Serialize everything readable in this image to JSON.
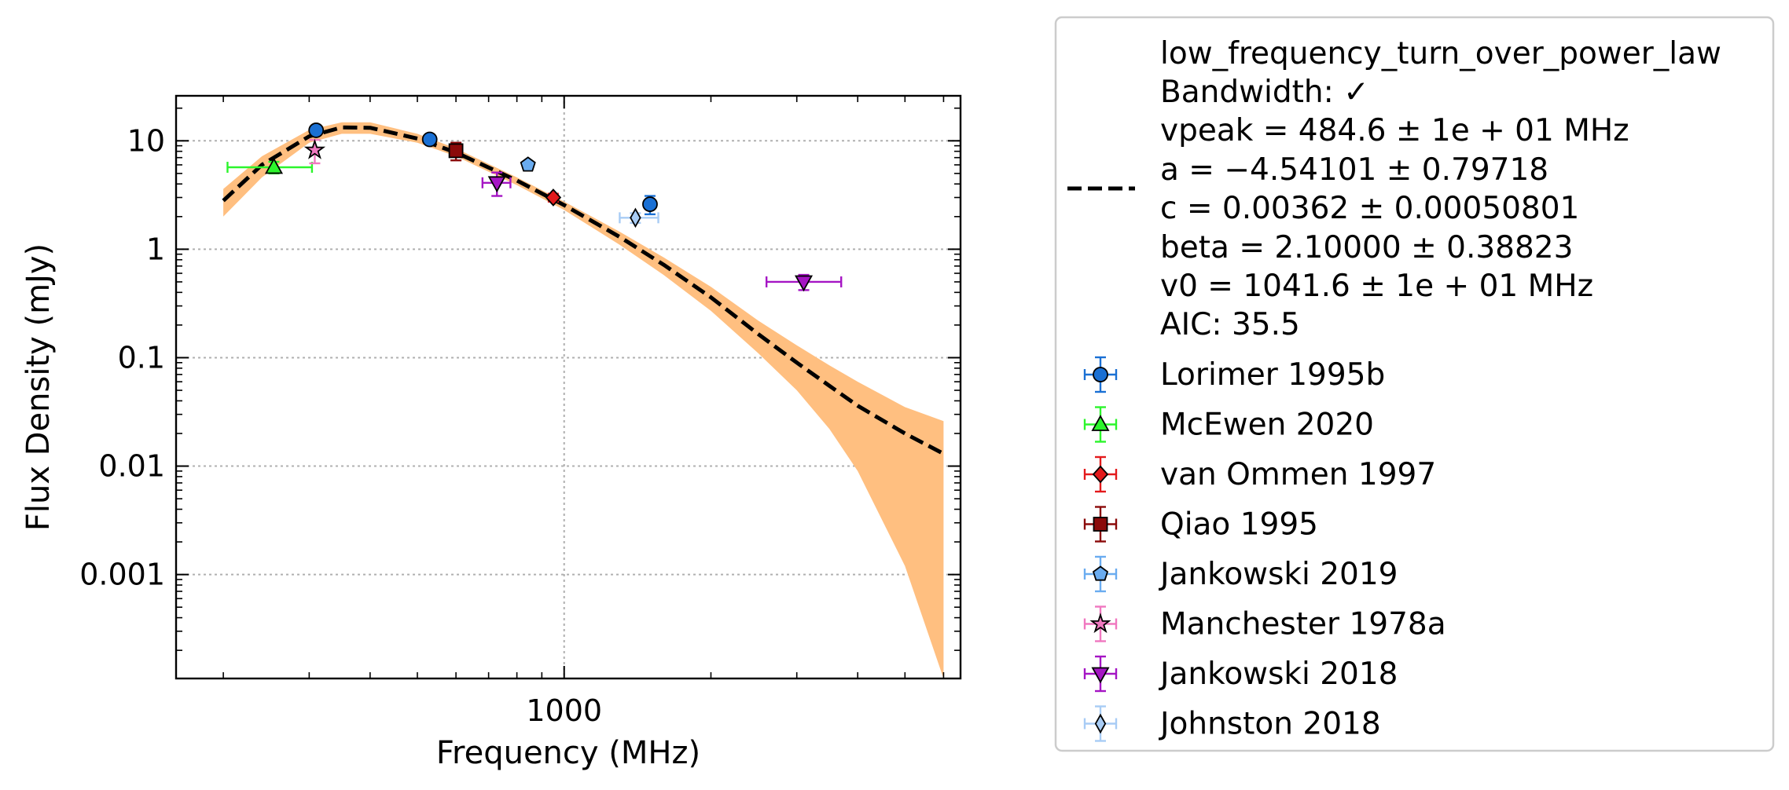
{
  "chart_data": {
    "type": "scatter",
    "title": "",
    "xlabel": "Frequency (MHz)",
    "ylabel": "Flux Density (mJy)",
    "xscale": "log",
    "yscale": "log",
    "xlim": [
      160,
      6500
    ],
    "ylim": [
      0.00011,
      26
    ],
    "grid": true,
    "legend_placement": "outside-right",
    "x_ticks": [
      {
        "value": 1000,
        "label": "1000"
      }
    ],
    "y_ticks": [
      {
        "value": 10,
        "label": "10"
      },
      {
        "value": 1,
        "label": "1"
      },
      {
        "value": 0.1,
        "label": "0.1"
      },
      {
        "value": 0.01,
        "label": "0.01"
      },
      {
        "value": 0.001,
        "label": "0.001"
      }
    ],
    "model": {
      "name": "low_frequency_turn_over_power_law",
      "legend_lines": [
        "low_frequency_turn_over_power_law",
        "Bandwidth: ✓",
        "vpeak = 484.6 ± 1e + 01 MHz",
        "a = −4.54101 ± 0.79718",
        "c = 0.00362 ± 0.00050801",
        "beta = 2.10000 ± 0.38823",
        "v0 = 1041.6 ± 1e + 01 MHz",
        "AIC: 35.5"
      ],
      "line_color": "#000000",
      "band_color": "#ffbf80",
      "curve": {
        "x": [
          200,
          240,
          300,
          350,
          400,
          500,
          600,
          800,
          1000,
          1300,
          1600,
          2000,
          2500,
          3000,
          3500,
          4000,
          5000,
          6000
        ],
        "y": [
          2.8,
          6.0,
          11.0,
          13.3,
          13.2,
          10.5,
          7.8,
          4.3,
          2.55,
          1.3,
          0.72,
          0.36,
          0.165,
          0.09,
          0.055,
          0.036,
          0.02,
          0.013
        ],
        "y_low": [
          2.0,
          4.6,
          9.6,
          11.6,
          11.6,
          9.6,
          7.2,
          3.9,
          2.3,
          1.1,
          0.58,
          0.27,
          0.11,
          0.05,
          0.022,
          0.009,
          0.0012,
          0.00011
        ],
        "y_high": [
          3.6,
          7.2,
          12.6,
          14.8,
          14.8,
          11.6,
          8.5,
          4.6,
          2.75,
          1.45,
          0.84,
          0.45,
          0.22,
          0.13,
          0.085,
          0.06,
          0.035,
          0.026
        ]
      }
    },
    "series": [
      {
        "name": "Lorimer 1995b",
        "marker": "circle",
        "color": "#1a70d4",
        "points": [
          {
            "x": 310,
            "y": 12.5,
            "yerr": 0.8
          },
          {
            "x": 530,
            "y": 10.3,
            "yerr": 0.5
          },
          {
            "x": 1500,
            "y": 2.6,
            "yerr": 0.5
          }
        ]
      },
      {
        "name": "McEwen 2020",
        "marker": "triangle-up",
        "color": "#2cf52c",
        "points": [
          {
            "x": 254,
            "y": 5.7,
            "yerr": 0.7,
            "xerr_lo": 204,
            "xerr_hi": 304
          }
        ]
      },
      {
        "name": "van Ommen 1997",
        "marker": "diamond",
        "color": "#e31a1c",
        "points": [
          {
            "x": 950,
            "y": 3.0,
            "yerr": 0.25
          }
        ]
      },
      {
        "name": "Qiao 1995",
        "marker": "square",
        "color": "#8b0a0a",
        "points": [
          {
            "x": 600,
            "y": 8.1,
            "yerr": 1.5
          }
        ]
      },
      {
        "name": "Jankowski 2019",
        "marker": "pentagon",
        "color": "#6aacf0",
        "points": [
          {
            "x": 843,
            "y": 6.0,
            "yerr": 0.4
          }
        ]
      },
      {
        "name": "Manchester 1978a",
        "marker": "star",
        "color": "#f078c0",
        "points": [
          {
            "x": 308,
            "y": 8.2,
            "yerr": 2.0
          }
        ]
      },
      {
        "name": "Jankowski 2018",
        "marker": "triangle-down",
        "color": "#a515c4",
        "points": [
          {
            "x": 728,
            "y": 4.1,
            "yerr": 1.0,
            "xerr_lo": 680,
            "xerr_hi": 776
          },
          {
            "x": 3100,
            "y": 0.5,
            "yerr": 0.08,
            "xerr_lo": 2600,
            "xerr_hi": 3700
          }
        ]
      },
      {
        "name": "Johnston 2018",
        "marker": "thin-diamond",
        "color": "#a8ccf5",
        "points": [
          {
            "x": 1400,
            "y": 1.95,
            "yerr": 0.2,
            "xerr_lo": 1300,
            "xerr_hi": 1560
          }
        ]
      }
    ]
  }
}
